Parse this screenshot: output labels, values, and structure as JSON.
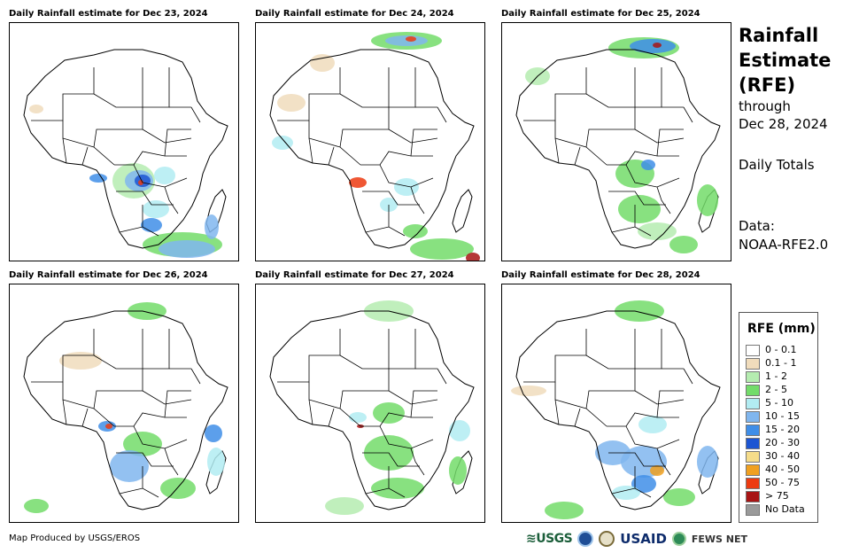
{
  "panels": [
    {
      "title": "Daily Rainfall estimate for Dec 23, 2024"
    },
    {
      "title": "Daily Rainfall estimate for Dec 24, 2024"
    },
    {
      "title": "Daily Rainfall estimate for Dec 25, 2024"
    },
    {
      "title": "Daily Rainfall estimate for Dec 26, 2024"
    },
    {
      "title": "Daily Rainfall estimate for Dec 27, 2024"
    },
    {
      "title": "Daily Rainfall estimate for Dec 28, 2024"
    }
  ],
  "side": {
    "title_line1": "Rainfall",
    "title_line2": "Estimate",
    "title_line3": "(RFE)",
    "through": "through",
    "date": "Dec 28, 2024",
    "totals": "Daily Totals",
    "data_label": "Data:",
    "data_source": "NOAA-RFE2.0"
  },
  "legend": {
    "title": "RFE (mm)",
    "items": [
      {
        "label": "0 - 0.1",
        "color": "#ffffff"
      },
      {
        "label": "0.1 - 1",
        "color": "#f0dcbc"
      },
      {
        "label": "1 - 2",
        "color": "#b5ecb0"
      },
      {
        "label": "2 - 5",
        "color": "#73dc6a"
      },
      {
        "label": "5 - 10",
        "color": "#b2ecf2"
      },
      {
        "label": "10 - 15",
        "color": "#80b6ee"
      },
      {
        "label": "15 - 20",
        "color": "#3f8ee8"
      },
      {
        "label": "20 - 30",
        "color": "#1c55d2"
      },
      {
        "label": "30 - 40",
        "color": "#f5dc8a"
      },
      {
        "label": "40 - 50",
        "color": "#f0a020"
      },
      {
        "label": "50 - 75",
        "color": "#ec3a10"
      },
      {
        "label": "> 75",
        "color": "#a81414"
      },
      {
        "label": "No Data",
        "color": "#9a9a9a"
      }
    ]
  },
  "footer": {
    "credit": "Map Produced by USGS/EROS"
  },
  "logos": {
    "usgs": "≋USGS",
    "usaid": "USAID",
    "fews": "FEWS NET"
  }
}
